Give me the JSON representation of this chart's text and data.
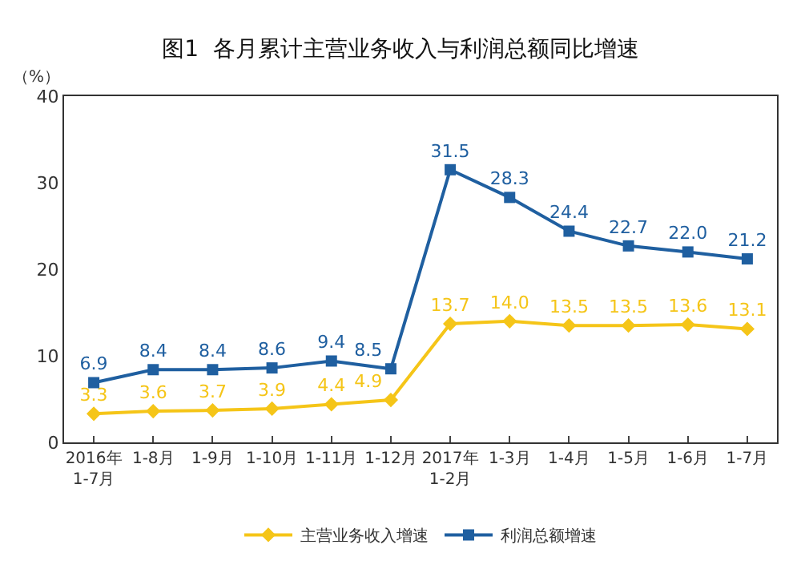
{
  "chart_data": {
    "type": "line",
    "title": "图1  各月累计主营业务收入与利润总额同比增速",
    "ylabel": "（%）",
    "categories": [
      "2016年\n1-7月",
      "1-8月",
      "1-9月",
      "1-10月",
      "1-11月",
      "1-12月",
      "2017年\n1-2月",
      "1-3月",
      "1-4月",
      "1-5月",
      "1-6月",
      "1-7月"
    ],
    "series": [
      {
        "name": "主营业务收入增速",
        "color": "#f5c518",
        "marker": "diamond",
        "values": [
          3.3,
          3.6,
          3.7,
          3.9,
          4.4,
          4.9,
          13.7,
          14.0,
          13.5,
          13.5,
          13.6,
          13.1
        ],
        "value_labels": [
          "3.3",
          "3.6",
          "3.7",
          "3.9",
          "4.4",
          "4.9",
          "13.7",
          "14.0",
          "13.5",
          "13.5",
          "13.6",
          "13.1"
        ]
      },
      {
        "name": "利润总额增速",
        "color": "#1f5fa0",
        "marker": "square",
        "values": [
          6.9,
          8.4,
          8.4,
          8.6,
          9.4,
          8.5,
          31.5,
          28.3,
          24.4,
          22.7,
          22.0,
          21.2
        ],
        "value_labels": [
          "6.9",
          "8.4",
          "8.4",
          "8.6",
          "9.4",
          "8.5",
          "31.5",
          "28.3",
          "24.4",
          "22.7",
          "22.0",
          "21.2"
        ]
      }
    ],
    "ylim": [
      0,
      40
    ],
    "yticks": [
      0,
      10,
      20,
      30,
      40
    ],
    "grid": false,
    "legend": "bottom"
  }
}
